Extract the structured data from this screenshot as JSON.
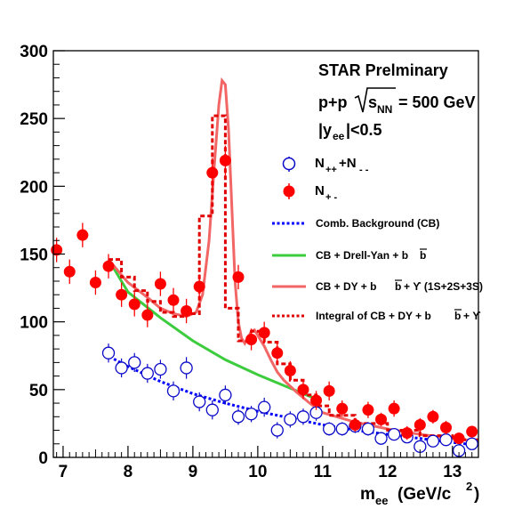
{
  "chart_data": {
    "type": "scatter",
    "annotations": {
      "prelim": "STAR Prelminary",
      "system": "p+p",
      "energy": "= 500 GeV",
      "rapidity": "|y",
      "rapidity_sub": "ee",
      "rapidity_cut": "|<0.5"
    },
    "xlabel": "m",
    "xlabel_sub": "ee",
    "xlabel_units": "(GeV/c",
    "xlabel_units_sup": "2",
    "xlabel_units_end": ")",
    "xlim": [
      6.85,
      13.4
    ],
    "ylim": [
      0,
      300
    ],
    "xticks": [
      7,
      8,
      9,
      10,
      11,
      12,
      13
    ],
    "yticks": [
      0,
      50,
      100,
      150,
      200,
      250,
      300
    ],
    "grid": false,
    "legend_position": "right",
    "legend": {
      "like_sign": "N",
      "like_sign_sub": "++",
      "like_sign_plus": "+N",
      "like_sign_sub2": "- -",
      "unlike_sign": "N",
      "unlike_sign_sub": "+ -",
      "comb_bkg": "Comb. Background (CB)",
      "cb_dy_bb": "CB + Drell-Yan + b",
      "cb_dy_bb_ups": "CB + DY + b",
      "cb_dy_bb_ups_tail": "+ ϒ (1S+2S+3S)",
      "integral": "Integral of CB + DY + b",
      "integral_tail": "+ ϒ",
      "b": "b"
    },
    "colors": {
      "like_sign": "#0a0ac8",
      "unlike_sign": "#ff0000",
      "comb_bkg": "#0000ff",
      "cb_dy_bb": "#3dcc3d",
      "cb_dy_bb_ups": "#f26666",
      "integral": "#e00000"
    },
    "series": [
      {
        "name": "N++ + N--",
        "style": "open-circle",
        "points": [
          [
            7.7,
            77,
            7
          ],
          [
            7.9,
            66,
            7
          ],
          [
            8.1,
            70,
            7
          ],
          [
            8.3,
            62,
            7
          ],
          [
            8.5,
            65,
            7
          ],
          [
            8.7,
            49,
            7
          ],
          [
            8.9,
            66,
            8
          ],
          [
            9.1,
            41,
            7
          ],
          [
            9.3,
            35,
            7
          ],
          [
            9.5,
            46,
            7
          ],
          [
            9.7,
            30,
            6
          ],
          [
            9.9,
            32,
            6
          ],
          [
            10.1,
            37,
            7
          ],
          [
            10.3,
            20,
            6
          ],
          [
            10.5,
            28,
            6
          ],
          [
            10.7,
            30,
            6
          ],
          [
            10.9,
            33,
            6
          ],
          [
            11.1,
            21,
            5
          ],
          [
            11.3,
            21,
            5
          ],
          [
            11.5,
            23,
            5
          ],
          [
            11.7,
            21,
            5
          ],
          [
            11.9,
            14,
            4
          ],
          [
            12.1,
            17,
            4
          ],
          [
            12.3,
            15,
            4
          ],
          [
            12.5,
            8,
            4
          ],
          [
            12.7,
            12,
            4
          ],
          [
            12.9,
            13,
            4
          ],
          [
            13.1,
            5,
            3
          ],
          [
            13.3,
            10,
            3
          ]
        ]
      },
      {
        "name": "N+-",
        "style": "filled-circle",
        "points": [
          [
            6.9,
            153,
            9
          ],
          [
            7.1,
            137,
            9
          ],
          [
            7.3,
            164,
            9
          ],
          [
            7.5,
            129,
            9
          ],
          [
            7.7,
            141,
            9
          ],
          [
            7.9,
            120,
            9
          ],
          [
            8.1,
            113,
            9
          ],
          [
            8.3,
            105,
            9
          ],
          [
            8.5,
            128,
            9
          ],
          [
            8.7,
            116,
            9
          ],
          [
            8.9,
            108,
            9
          ],
          [
            9.1,
            126,
            9
          ],
          [
            9.3,
            210,
            11
          ],
          [
            9.5,
            219,
            11
          ],
          [
            9.7,
            133,
            9
          ],
          [
            9.9,
            87,
            8
          ],
          [
            10.1,
            92,
            8
          ],
          [
            10.3,
            77,
            8
          ],
          [
            10.5,
            64,
            7
          ],
          [
            10.7,
            50,
            7
          ],
          [
            10.9,
            42,
            7
          ],
          [
            11.1,
            49,
            7
          ],
          [
            11.3,
            36,
            6
          ],
          [
            11.5,
            24,
            5
          ],
          [
            11.7,
            35,
            6
          ],
          [
            11.9,
            28,
            5
          ],
          [
            12.1,
            36,
            6
          ],
          [
            12.3,
            18,
            5
          ],
          [
            12.5,
            24,
            5
          ],
          [
            12.7,
            30,
            5
          ],
          [
            12.9,
            22,
            5
          ],
          [
            13.1,
            14,
            4
          ],
          [
            13.3,
            19,
            4
          ]
        ]
      },
      {
        "name": "Comb. Background (CB)",
        "style": "dotted",
        "x": [
          7.65,
          8.0,
          8.5,
          9.0,
          9.5,
          10.0,
          10.5,
          11.0,
          11.5,
          12.0,
          12.5,
          13.0,
          13.4
        ],
        "y": [
          76,
          67,
          56,
          47,
          40,
          34,
          29,
          24,
          20,
          17,
          14,
          11,
          9
        ]
      },
      {
        "name": "CB + Drell-Yan + b bbar",
        "style": "solid",
        "x": [
          7.7,
          8.0,
          8.5,
          9.0,
          9.5,
          10.0,
          10.5,
          10.9
        ],
        "y": [
          146,
          122,
          103,
          86,
          72,
          61,
          51,
          43
        ]
      },
      {
        "name": "CB + DY + b bbar + Upsilon(1S+2S+3S)",
        "style": "solid",
        "x": [
          7.7,
          8.0,
          8.3,
          8.5,
          8.7,
          8.9,
          9.05,
          9.15,
          9.25,
          9.33,
          9.4,
          9.45,
          9.5,
          9.55,
          9.6,
          9.65,
          9.7,
          9.75,
          9.8,
          9.85,
          9.9,
          9.95,
          10.0,
          10.05,
          10.1,
          10.2,
          10.3,
          10.4,
          10.6,
          10.8,
          11.0,
          11.5,
          12.0,
          12.5,
          13.0,
          13.4
        ],
        "y": [
          146,
          129,
          118,
          110,
          106,
          104,
          107,
          120,
          160,
          215,
          260,
          278,
          275,
          242,
          185,
          130,
          100,
          88,
          84,
          88,
          93,
          94,
          90,
          86,
          82,
          72,
          63,
          57,
          48,
          40,
          33,
          26,
          21,
          17,
          14,
          12
        ]
      },
      {
        "name": "Integral of CB + DY + b bbar + Upsilon",
        "style": "dashed",
        "x": [
          7.7,
          7.9,
          7.9,
          8.1,
          8.1,
          8.3,
          8.3,
          8.5,
          8.5,
          8.7,
          8.7,
          8.9,
          8.9,
          9.1,
          9.1,
          9.3,
          9.3,
          9.5,
          9.5,
          9.7,
          9.7,
          9.9,
          9.9,
          10.1,
          10.1,
          10.3,
          10.3,
          10.5,
          10.5,
          10.7,
          10.7,
          10.9,
          10.9,
          11.1,
          11.1,
          11.5,
          11.5,
          12.0,
          12.0,
          12.5,
          12.5,
          13.0,
          13.0,
          13.4
        ],
        "y": [
          146,
          146,
          133,
          133,
          123,
          123,
          115,
          115,
          107,
          107,
          104,
          104,
          106,
          106,
          178,
          178,
          252,
          252,
          110,
          110,
          86,
          86,
          93,
          93,
          85,
          85,
          69,
          69,
          57,
          57,
          46,
          46,
          38,
          38,
          31,
          31,
          25,
          25,
          20,
          20,
          16,
          16,
          13,
          13
        ]
      }
    ]
  }
}
